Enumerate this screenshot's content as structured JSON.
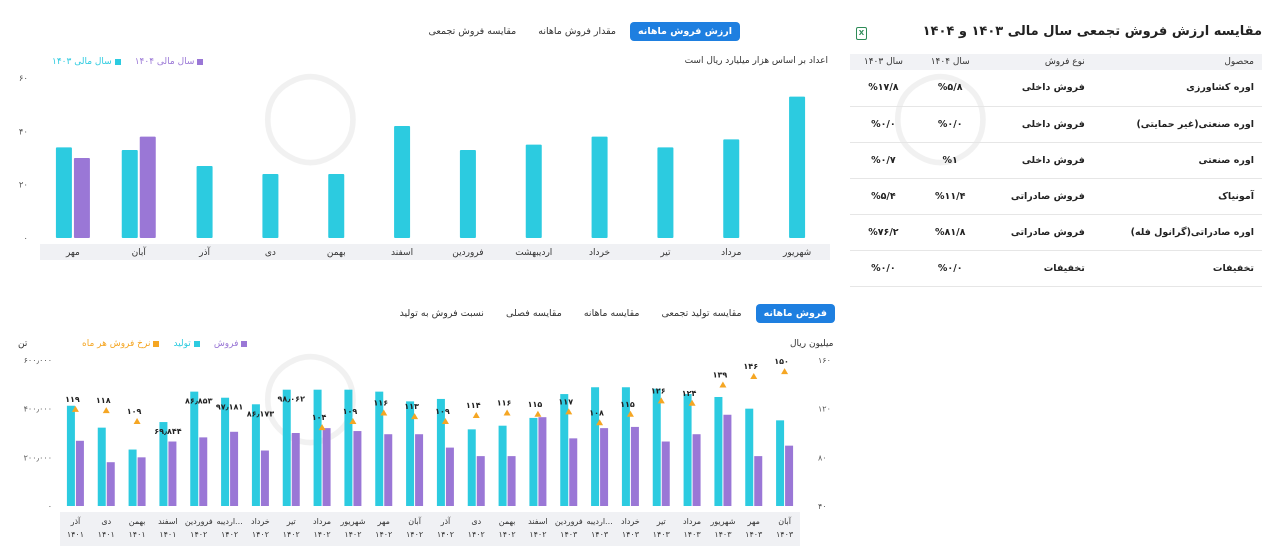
{
  "top_tabs": [
    "ارزش فروش ماهانه",
    "مقدار فروش ماهانه",
    "مقایسه فروش تجمعی"
  ],
  "top_active": 0,
  "top_note": "اعداد بر اساس هزار میلیارد ریال است",
  "bottom_tabs": [
    "فروش ماهانه",
    "مقایسه تولید تجمعی",
    "مقایسه ماهانه",
    "مقایسه فصلی",
    "نسبت فروش به تولید"
  ],
  "bottom_active": 0,
  "left_unit": "تن",
  "right_unit": "میلیون ریال",
  "colors": {
    "cyan": "#2ccbe0",
    "purple": "#9a77d6",
    "orange": "#f5a623",
    "blue": "#1e7fe0"
  },
  "table": {
    "title": "مقایسه ارزش فروش تجمعی سال مالی ۱۴۰۳ و ۱۴۰۴",
    "headers": [
      "محصول",
      "نوع فروش",
      "سال ۱۴۰۴",
      "سال ۱۴۰۳"
    ],
    "rows": [
      [
        "اوره کشاورزی",
        "فروش داخلی",
        "%۵/۸",
        "%۱۷/۸"
      ],
      [
        "اوره صنعتی(غیر حمایتی)",
        "فروش داخلی",
        "%۰/۰",
        "%۰/۰"
      ],
      [
        "اوره صنعتی",
        "فروش داخلی",
        "%۱",
        "%۰/۷"
      ],
      [
        "آمونیاک",
        "فروش صادراتی",
        "%۱۱/۴",
        "%۵/۴"
      ],
      [
        "اوره صادراتی(گرانول فله)",
        "فروش صادراتی",
        "%۸۱/۸",
        "%۷۶/۲"
      ],
      [
        "تخفیفات",
        "تخفیفات",
        "%۰/۰",
        "%۰/۰"
      ]
    ]
  },
  "chart_data": [
    {
      "type": "bar",
      "title": "",
      "categories": [
        "مهر",
        "آبان",
        "آذر",
        "دی",
        "بهمن",
        "اسفند",
        "فروردین",
        "اردیبهشت",
        "خرداد",
        "تیر",
        "مرداد",
        "شهریور"
      ],
      "series": [
        {
          "name": "سال مالی ۱۴۰۳",
          "color": "#2ccbe0",
          "values": [
            34,
            33,
            27,
            24,
            24,
            42,
            33,
            35,
            38,
            34,
            37,
            53
          ]
        },
        {
          "name": "سال مالی ۱۴۰۴",
          "color": "#9a77d6",
          "values": [
            30,
            38,
            null,
            null,
            null,
            null,
            null,
            null,
            null,
            null,
            null,
            null
          ]
        }
      ],
      "yticks": [
        "۰",
        "۲۰",
        "۴۰",
        "۶۰"
      ],
      "ylim": [
        0,
        60
      ],
      "legend_position": "top-left",
      "grid": false
    },
    {
      "type": "bar",
      "title": "",
      "categories": [
        "آذر ۱۴۰۱",
        "دی ۱۴۰۱",
        "بهمن ۱۴۰۱",
        "اسفند ۱۴۰۱",
        "فروردین ۱۴۰۲",
        "اردیبه... ۱۴۰۲",
        "خرداد ۱۴۰۲",
        "تیر ۱۴۰۲",
        "مرداد ۱۴۰۲",
        "شهریور ۱۴۰۲",
        "مهر ۱۴۰۲",
        "آبان ۱۴۰۲",
        "آذر ۱۴۰۲",
        "دی ۱۴۰۲",
        "بهمن ۱۴۰۲",
        "اسفند ۱۴۰۲",
        "فروردین ۱۴۰۳",
        "اردیبه... ۱۴۰۳",
        "خرداد ۱۴۰۳",
        "تیر ۱۴۰۳",
        "مرداد ۱۴۰۳",
        "شهریور ۱۴۰۳",
        "مهر ۱۴۰۳",
        "آبان ۱۴۰۳"
      ],
      "cat_lines": [
        [
          "آذر",
          "۱۴۰۱"
        ],
        [
          "دی",
          "۱۴۰۱"
        ],
        [
          "بهمن",
          "۱۴۰۱"
        ],
        [
          "اسفند",
          "۱۴۰۱"
        ],
        [
          "فروردین",
          "۱۴۰۲"
        ],
        [
          "اردیبه...",
          "۱۴۰۲"
        ],
        [
          "خرداد",
          "۱۴۰۲"
        ],
        [
          "تیر",
          "۱۴۰۲"
        ],
        [
          "مرداد",
          "۱۴۰۲"
        ],
        [
          "شهریور",
          "۱۴۰۲"
        ],
        [
          "مهر",
          "۱۴۰۲"
        ],
        [
          "آبان",
          "۱۴۰۲"
        ],
        [
          "آذر",
          "۱۴۰۲"
        ],
        [
          "دی",
          "۱۴۰۲"
        ],
        [
          "بهمن",
          "۱۴۰۲"
        ],
        [
          "اسفند",
          "۱۴۰۲"
        ],
        [
          "فروردین",
          "۱۴۰۳"
        ],
        [
          "اردیبه...",
          "۱۴۰۳"
        ],
        [
          "خرداد",
          "۱۴۰۳"
        ],
        [
          "تیر",
          "۱۴۰۳"
        ],
        [
          "مرداد",
          "۱۴۰۳"
        ],
        [
          "شهریور",
          "۱۴۰۳"
        ],
        [
          "مهر",
          "۱۴۰۳"
        ],
        [
          "آبان",
          "۱۴۰۳"
        ]
      ],
      "series": [
        {
          "name": "فروش",
          "color": "#9a77d6",
          "axis": "left",
          "values": [
            268000,
            180000,
            200000,
            265000,
            282000,
            305000,
            228000,
            300000,
            320000,
            308000,
            295000,
            295000,
            240000,
            205000,
            205000,
            365000,
            278000,
            320000,
            325000,
            265000,
            295000,
            375000,
            205000,
            248000
          ]
        },
        {
          "name": "تولید",
          "color": "#2ccbe0",
          "axis": "left",
          "values": [
            412000,
            322000,
            232000,
            345000,
            470000,
            445000,
            418000,
            478000,
            478000,
            478000,
            470000,
            430000,
            440000,
            315000,
            330000,
            362000,
            460000,
            488000,
            488000,
            482000,
            460000,
            448000,
            400000,
            352000
          ]
        },
        {
          "name": "نرخ فروش هر ماه",
          "color": "#f5a623",
          "axis": "right",
          "type": "marker",
          "values": [
            119,
            118,
            109,
            null,
            null,
            null,
            null,
            null,
            104,
            109,
            116,
            113,
            109,
            114,
            116,
            115,
            117,
            108,
            115,
            126,
            124,
            139,
            146,
            150
          ]
        }
      ],
      "bar_labels": [
        "",
        "",
        "",
        "۶۹٫۸۴۴",
        "۸۶٫۸۵۳",
        "۹۷٫۱۸۱",
        "۸۶٫۱۷۳",
        "۹۸٫۰۶۲",
        "",
        "",
        "",
        "",
        "",
        "",
        "",
        "",
        "",
        "",
        "",
        "",
        "",
        "",
        "",
        ""
      ],
      "marker_labels": [
        "۱۱۹",
        "۱۱۸",
        "۱۰۹",
        "",
        "",
        "",
        "",
        "",
        "۱۰۴",
        "۱۰۹",
        "۱۱۶",
        "۱۱۳",
        "۱۰۹",
        "۱۱۴",
        "۱۱۶",
        "۱۱۵",
        "۱۱۷",
        "۱۰۸",
        "۱۱۵",
        "۱۲۶",
        "۱۲۴",
        "۱۳۹",
        "۱۴۶",
        "۱۵۰"
      ],
      "left_ticks": [
        "۰",
        "۲۰۰٫۰۰۰",
        "۴۰۰٫۰۰۰",
        "۶۰۰٫۰۰۰"
      ],
      "left_lim": [
        0,
        600000
      ],
      "right_ticks": [
        "۴۰",
        "۸۰",
        "۱۲۰",
        "۱۶۰"
      ],
      "right_lim": [
        40,
        160
      ],
      "legend_position": "top-left",
      "grid": false
    }
  ]
}
